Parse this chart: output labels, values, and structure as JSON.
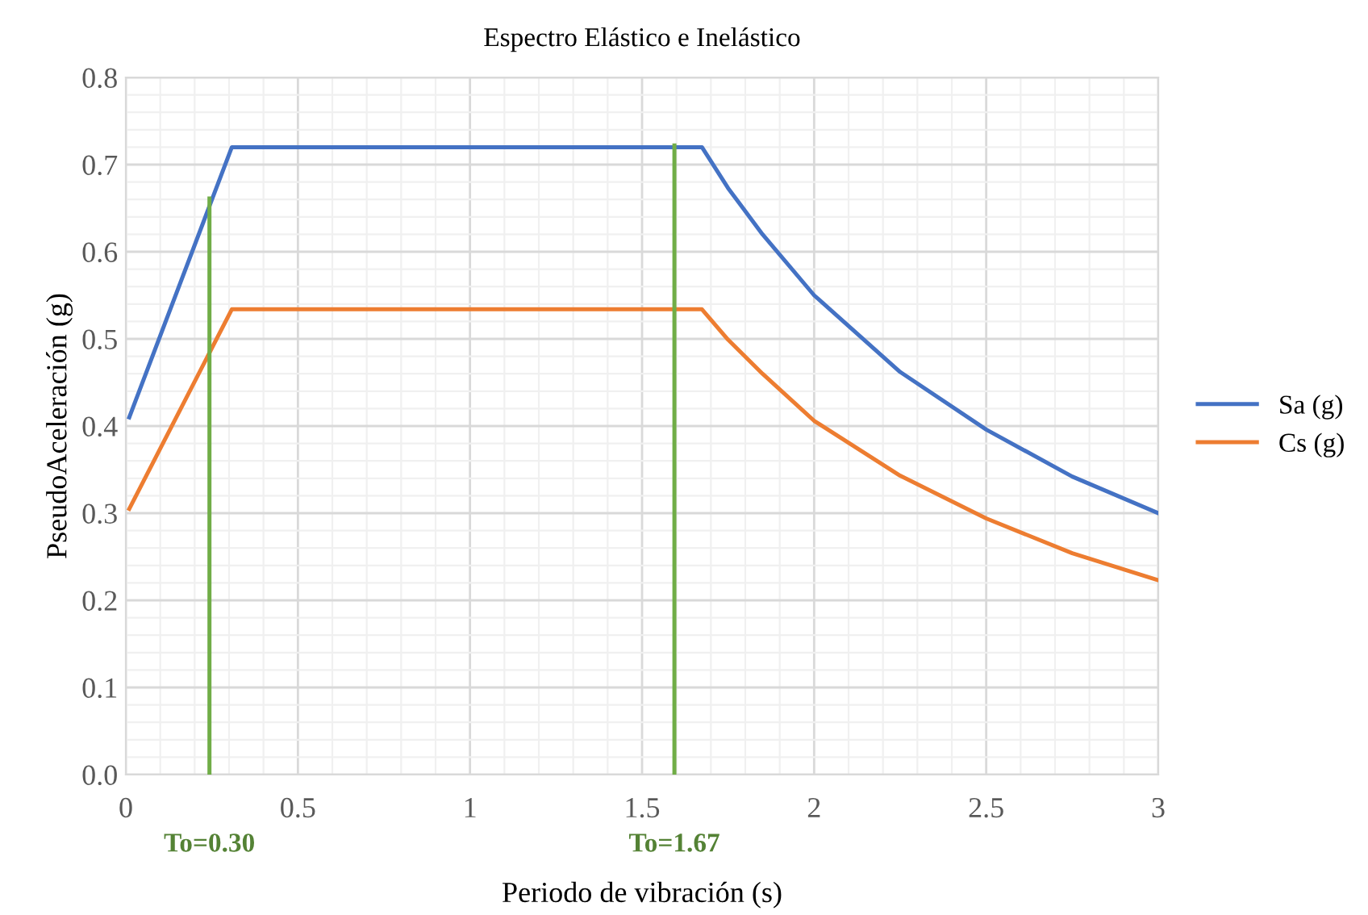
{
  "chart_data": {
    "type": "line",
    "title": "Espectro Elástico e Inelástico",
    "xlabel": "Periodo de vibración (s)",
    "ylabel": "PseudoAceleración (g)",
    "series": [
      {
        "name": "Sa (g)",
        "color": "#4472c4",
        "x": [
          0.01,
          0.308,
          1.674,
          1.75,
          1.85,
          2.0,
          2.25,
          2.5,
          2.75,
          3.0
        ],
        "values": [
          0.41,
          0.72,
          0.72,
          0.673,
          0.62,
          0.55,
          0.462,
          0.396,
          0.342,
          0.3
        ]
      },
      {
        "name": "Cs (g)",
        "color": "#ed7d31",
        "x": [
          0.01,
          0.308,
          1.674,
          1.75,
          1.85,
          2.0,
          2.25,
          2.5,
          2.75,
          3.0
        ],
        "values": [
          0.305,
          0.534,
          0.534,
          0.499,
          0.46,
          0.406,
          0.343,
          0.294,
          0.254,
          0.223
        ]
      },
      {
        "color": "#70ad47",
        "x": [
          0.243,
          0.243
        ],
        "values": [
          0,
          0.661
        ]
      },
      {
        "color": "#70ad47",
        "x": [
          1.594,
          1.594
        ],
        "values": [
          0,
          0.722
        ]
      }
    ],
    "annotations": [
      {
        "text": "To=0.30",
        "x": 0.243,
        "y": 0
      },
      {
        "text": "To=1.67",
        "x": 1.594,
        "y": 0
      }
    ],
    "xlim": [
      0,
      3
    ],
    "xticks": [
      0,
      0.5,
      1,
      1.5,
      2,
      2.5,
      3
    ],
    "ylim": [
      0,
      0.8
    ],
    "yticks": [
      {
        "value": 0,
        "label": "0.0"
      },
      {
        "value": 0.1,
        "label": "0.1"
      },
      {
        "value": 0.2,
        "label": "0.2"
      },
      {
        "value": 0.3,
        "label": "0.3"
      },
      {
        "value": 0.4,
        "label": "0.4"
      },
      {
        "value": 0.5,
        "label": "0.5"
      },
      {
        "value": 0.6,
        "label": "0.6"
      },
      {
        "value": 0.7,
        "label": "0.7"
      },
      {
        "value": 0.8,
        "label": "0.8"
      }
    ],
    "grid": true,
    "legend": "right",
    "marker": "none",
    "line_style": "solid"
  }
}
